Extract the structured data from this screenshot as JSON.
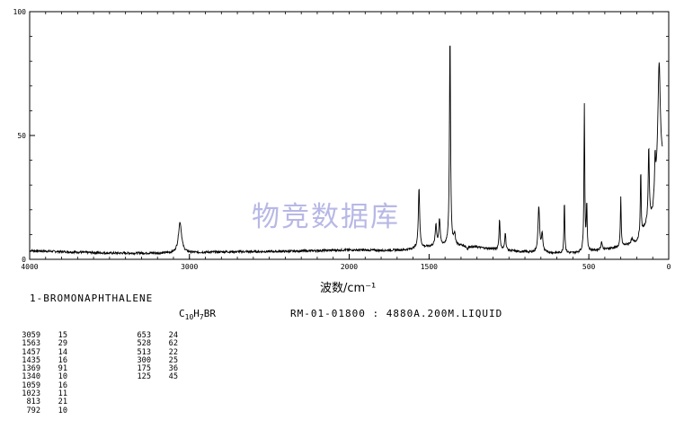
{
  "compound_name": "1-BROMONAPHTHALENE",
  "formula": {
    "parts": [
      "C",
      "10",
      "H",
      "7",
      "BR"
    ]
  },
  "catalog": "RM-01-01800 : 4880A.200M.LIQUID",
  "watermark": "物竞数据库",
  "peak_table": {
    "col1": [
      {
        "wavenumber": "3059",
        "intensity": "15"
      },
      {
        "wavenumber": "1563",
        "intensity": "29"
      },
      {
        "wavenumber": "1457",
        "intensity": "14"
      },
      {
        "wavenumber": "1435",
        "intensity": "16"
      },
      {
        "wavenumber": "1369",
        "intensity": "91"
      },
      {
        "wavenumber": "1340",
        "intensity": "10"
      },
      {
        "wavenumber": "1059",
        "intensity": "16"
      },
      {
        "wavenumber": "1023",
        "intensity": "11"
      },
      {
        "wavenumber": "813",
        "intensity": "21"
      },
      {
        "wavenumber": "792",
        "intensity": "10"
      }
    ],
    "col2": [
      {
        "wavenumber": "653",
        "intensity": "24"
      },
      {
        "wavenumber": "528",
        "intensity": "62"
      },
      {
        "wavenumber": "513",
        "intensity": "22"
      },
      {
        "wavenumber": "300",
        "intensity": "25"
      },
      {
        "wavenumber": "175",
        "intensity": "36"
      },
      {
        "wavenumber": "125",
        "intensity": "45"
      }
    ]
  },
  "chart_data": {
    "type": "line",
    "title": "",
    "xlabel": "波数/cm⁻¹",
    "ylabel": "",
    "xlim": [
      4000,
      0
    ],
    "ylim": [
      0,
      100
    ],
    "x_ticks": [
      4000,
      3000,
      2000,
      1500,
      500,
      0
    ],
    "x_tick_labels": [
      "4000",
      "3000",
      "2000",
      "1500",
      "500",
      "0"
    ],
    "y_ticks": [
      0,
      50,
      100
    ],
    "y_tick_labels": [
      "0",
      "50",
      "100"
    ],
    "baseline": [
      [
        4000,
        3.5
      ],
      [
        3500,
        2.5
      ],
      [
        3100,
        2.5
      ],
      [
        2800,
        3.0
      ],
      [
        2400,
        3.2
      ],
      [
        2000,
        3.8
      ],
      [
        1800,
        3.6
      ],
      [
        1650,
        3.8
      ],
      [
        1450,
        5.5
      ],
      [
        1300,
        5.5
      ],
      [
        1000,
        3.5
      ],
      [
        800,
        2.5
      ],
      [
        600,
        2.5
      ],
      [
        400,
        4.0
      ],
      [
        300,
        5.0
      ],
      [
        200,
        7.0
      ],
      [
        100,
        18.0
      ],
      [
        60,
        40.0
      ]
    ],
    "peaks": [
      {
        "x": 3059,
        "y": 15,
        "width": 12
      },
      {
        "x": 1563,
        "y": 29,
        "width": 5
      },
      {
        "x": 1510,
        "y": 5,
        "width": 5
      },
      {
        "x": 1457,
        "y": 14,
        "width": 5
      },
      {
        "x": 1435,
        "y": 16,
        "width": 5
      },
      {
        "x": 1369,
        "y": 91,
        "width": 4
      },
      {
        "x": 1340,
        "y": 10,
        "width": 5
      },
      {
        "x": 1260,
        "y": 4,
        "width": 6
      },
      {
        "x": 1200,
        "y": 5,
        "width": 6
      },
      {
        "x": 1059,
        "y": 16,
        "width": 4
      },
      {
        "x": 1023,
        "y": 11,
        "width": 4
      },
      {
        "x": 940,
        "y": 3,
        "width": 8
      },
      {
        "x": 813,
        "y": 21,
        "width": 6
      },
      {
        "x": 792,
        "y": 10,
        "width": 5
      },
      {
        "x": 760,
        "y": 3,
        "width": 6
      },
      {
        "x": 653,
        "y": 24,
        "width": 3
      },
      {
        "x": 528,
        "y": 62,
        "width": 3
      },
      {
        "x": 513,
        "y": 22,
        "width": 3
      },
      {
        "x": 420,
        "y": 7,
        "width": 5
      },
      {
        "x": 300,
        "y": 25,
        "width": 3
      },
      {
        "x": 230,
        "y": 8,
        "width": 6
      },
      {
        "x": 175,
        "y": 36,
        "width": 3
      },
      {
        "x": 125,
        "y": 45,
        "width": 4
      },
      {
        "x": 85,
        "y": 40,
        "width": 3
      },
      {
        "x": 60,
        "y": 80,
        "width": 8
      }
    ]
  }
}
